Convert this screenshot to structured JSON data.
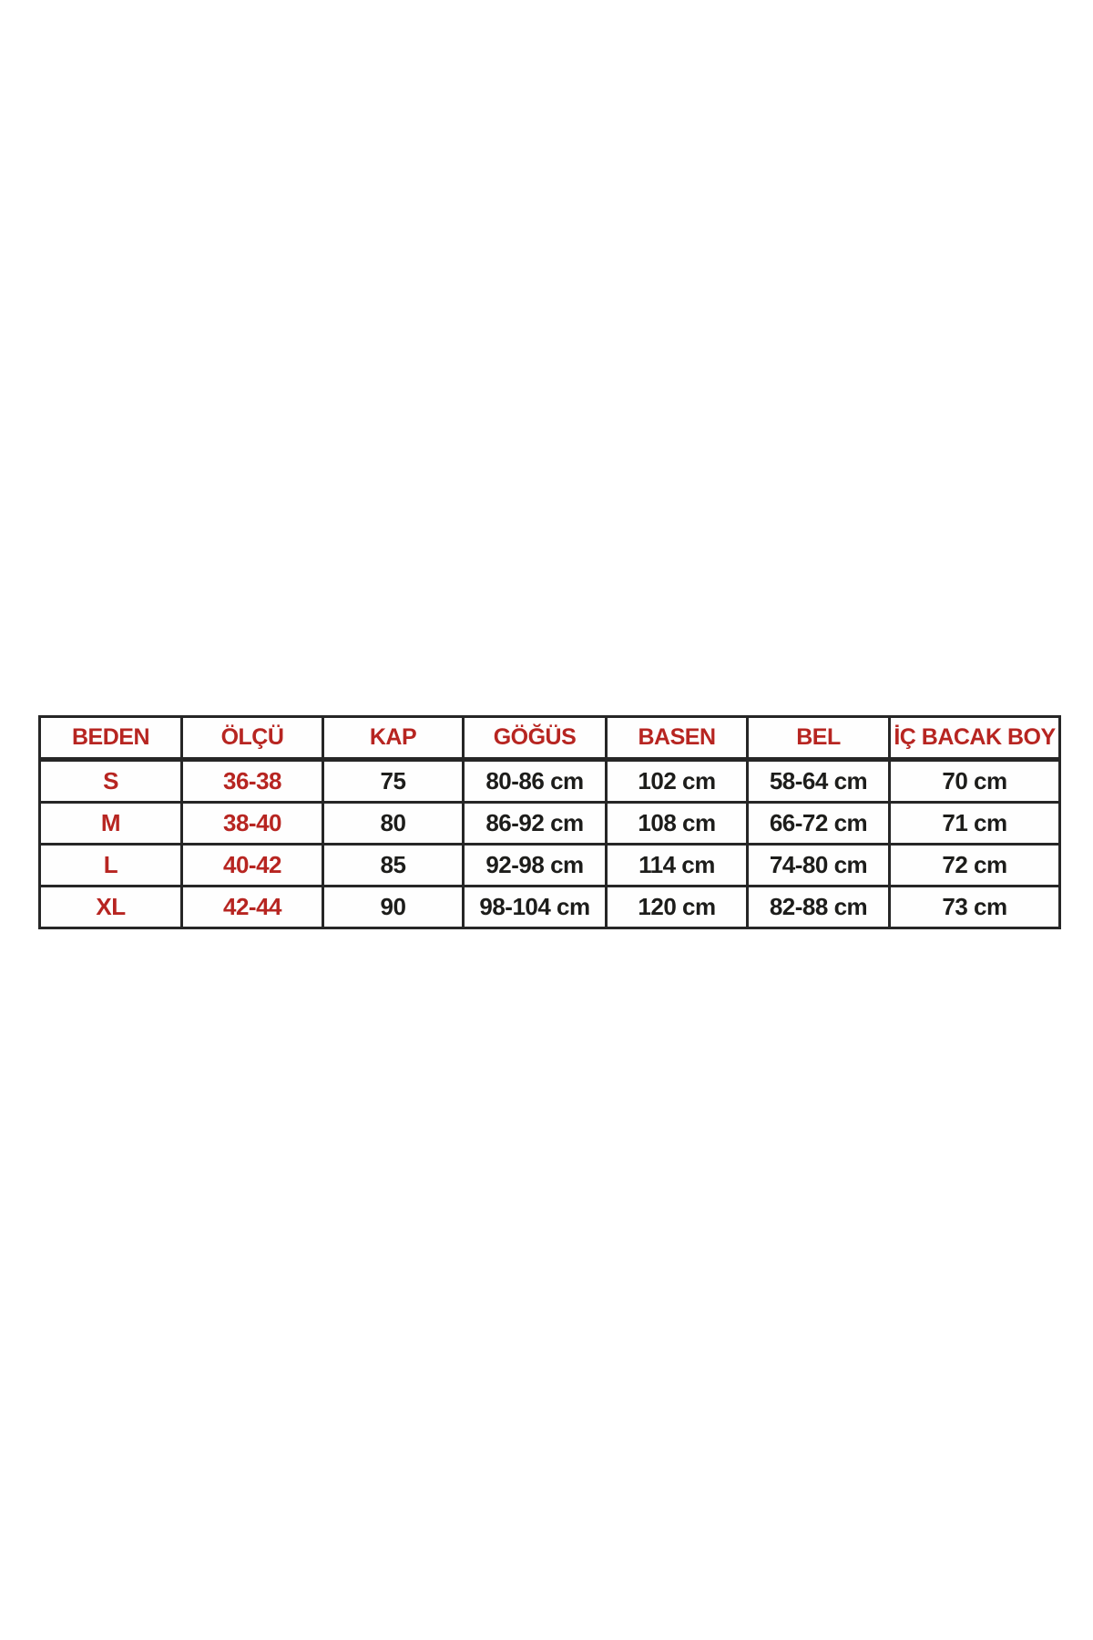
{
  "colors": {
    "background": "#ffffff",
    "header_text": "#b72521",
    "size_text": "#b72521",
    "value_text": "#1d1d1b",
    "border": "#262626"
  },
  "table": {
    "title": "size-chart",
    "red_columns": [
      0,
      1
    ],
    "columns": [
      "BEDEN",
      "ÖLÇÜ",
      "KAP",
      "GÖĞÜS",
      "BASEN",
      "BEL",
      "İÇ BACAK BOY"
    ],
    "column_keys": [
      "beden",
      "olcu",
      "kap",
      "gogus",
      "basen",
      "bel",
      "ic-bacak-boy"
    ],
    "rows": [
      [
        "S",
        "36-38",
        "75",
        "80-86 cm",
        "102 cm",
        "58-64 cm",
        "70 cm"
      ],
      [
        "M",
        "38-40",
        "80",
        "86-92 cm",
        "108 cm",
        "66-72 cm",
        "71 cm"
      ],
      [
        "L",
        "40-42",
        "85",
        "92-98 cm",
        "114 cm",
        "74-80 cm",
        "72 cm"
      ],
      [
        "XL",
        "42-44",
        "90",
        "98-104 cm",
        "120 cm",
        "82-88 cm",
        "73 cm"
      ]
    ]
  }
}
